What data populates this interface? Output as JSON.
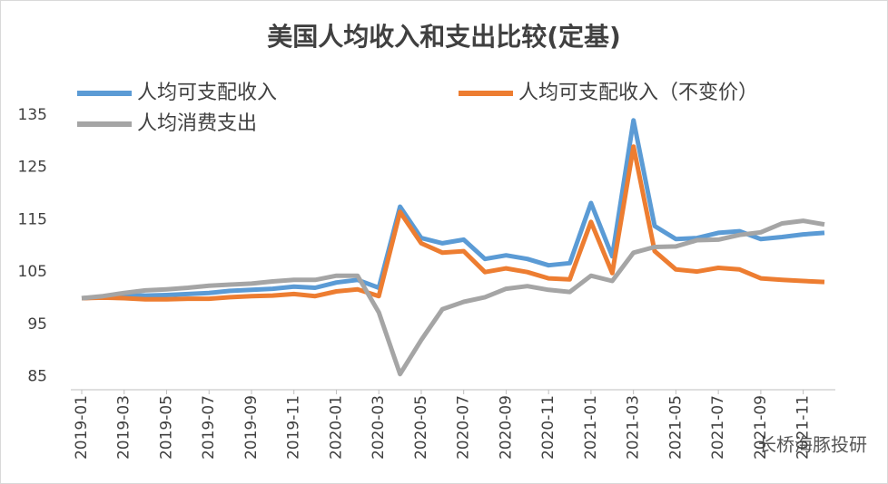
{
  "chart_data": {
    "type": "line",
    "title": "美国人均收入和支出比较(定基)",
    "categories": [
      "2019-01",
      null,
      "2019-03",
      null,
      "2019-05",
      null,
      "2019-07",
      null,
      "2019-09",
      null,
      "2019-11",
      null,
      "2020-01",
      null,
      "2020-03",
      null,
      "2020-05",
      null,
      "2020-07",
      null,
      "2020-09",
      null,
      "2020-11",
      null,
      "2021-01",
      null,
      "2021-03",
      null,
      "2021-05",
      null,
      "2021-07",
      null,
      "2021-09",
      null,
      "2021-11",
      null
    ],
    "series": [
      {
        "name": "人均可支配收入",
        "color": "#5b9bd5",
        "values": [
          100,
          100.2,
          100.5,
          100.5,
          100.6,
          100.8,
          101,
          101.4,
          101.6,
          101.8,
          102.2,
          102,
          103,
          103.5,
          102,
          117.5,
          111.5,
          110.5,
          111.2,
          107.5,
          108.2,
          107.5,
          106.3,
          106.7,
          118.2,
          108,
          134,
          113.8,
          111.3,
          111.5,
          112.5,
          112.8,
          111.3,
          111.7,
          112.2,
          112.5
        ]
      },
      {
        "name": "人均可支配收入（不变价）",
        "color": "#ed7d31",
        "values": [
          100,
          100.1,
          100,
          99.8,
          99.8,
          99.9,
          99.9,
          100.2,
          100.4,
          100.5,
          100.8,
          100.4,
          101.3,
          101.7,
          100.4,
          116.5,
          110.5,
          108.7,
          109,
          105,
          105.7,
          105,
          103.8,
          103.6,
          114.6,
          104.8,
          129,
          109,
          105.5,
          105.1,
          105.8,
          105.5,
          103.8,
          103.5,
          103.3,
          103.1
        ]
      },
      {
        "name": "人均消费支出",
        "color": "#a5a5a5",
        "values": [
          100,
          100.4,
          101,
          101.5,
          101.7,
          102,
          102.4,
          102.6,
          102.8,
          103.2,
          103.5,
          103.5,
          104.3,
          104.3,
          97.3,
          85.5,
          92,
          97.9,
          99.3,
          100.2,
          101.8,
          102.3,
          101.6,
          101.2,
          104.3,
          103.3,
          108.7,
          109.8,
          109.9,
          111.1,
          111.2,
          112.1,
          112.6,
          114.3,
          114.8,
          114.1
        ]
      }
    ],
    "ylim": [
      82.5,
      137.5
    ],
    "yticks": [
      85,
      95,
      105,
      115,
      125,
      135
    ],
    "grid": false,
    "watermark": "长桥海豚投研"
  }
}
